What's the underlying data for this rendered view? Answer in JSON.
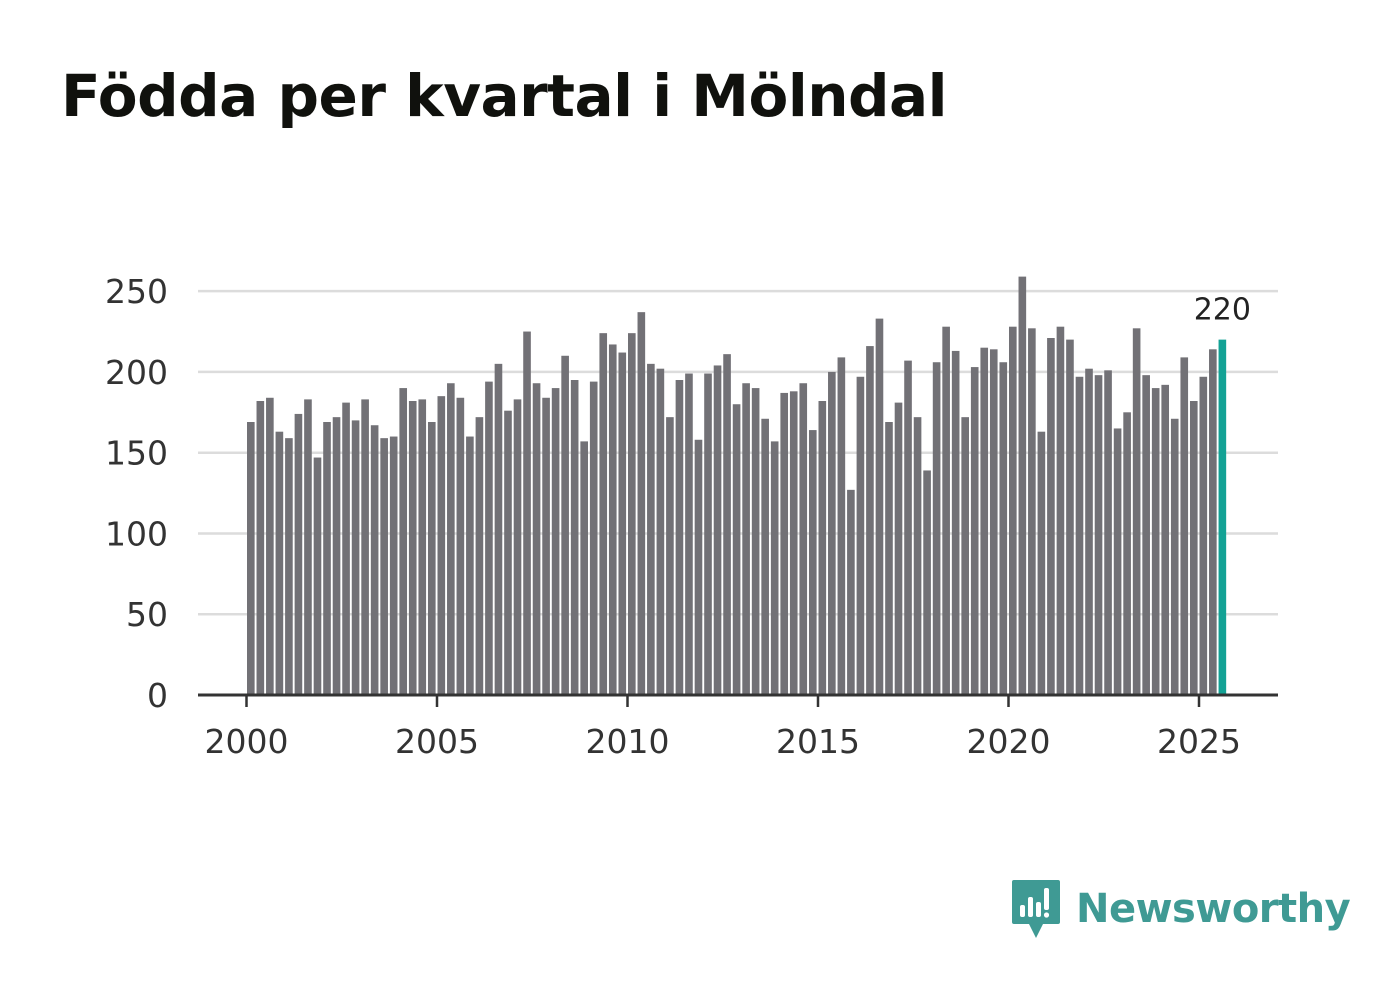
{
  "title": "Födda per kvartal i Mölndal",
  "brand": {
    "name": "Newsworthy",
    "icon": "newsworthy-logo-icon"
  },
  "colors": {
    "bar": "#727176",
    "highlight": "#13a295",
    "grid": "#dcdcdc",
    "axis": "#333333",
    "brand": "#3f9a94"
  },
  "chart_data": {
    "type": "bar",
    "title": "Födda per kvartal i Mölndal",
    "xlabel": "",
    "ylabel": "",
    "x_start_year": 2000,
    "periods_per_year": 4,
    "xlim": [
      1999.75,
      2027.0
    ],
    "ylim": [
      0,
      260
    ],
    "yticks": [
      0,
      50,
      100,
      150,
      200,
      250
    ],
    "xticks": [
      2000,
      2005,
      2010,
      2015,
      2020,
      2025
    ],
    "grid": true,
    "highlight_last": true,
    "last_value_label": "220",
    "values": [
      169,
      182,
      184,
      163,
      159,
      174,
      183,
      147,
      169,
      172,
      181,
      170,
      183,
      167,
      159,
      160,
      190,
      182,
      183,
      169,
      185,
      193,
      184,
      160,
      172,
      194,
      205,
      176,
      183,
      225,
      193,
      184,
      190,
      210,
      195,
      157,
      194,
      224,
      217,
      212,
      224,
      237,
      205,
      202,
      172,
      195,
      199,
      158,
      199,
      204,
      211,
      180,
      193,
      190,
      171,
      157,
      187,
      188,
      193,
      164,
      182,
      200,
      209,
      127,
      197,
      216,
      233,
      169,
      181,
      207,
      172,
      139,
      206,
      228,
      213,
      172,
      203,
      215,
      214,
      206,
      228,
      259,
      227,
      163,
      221,
      228,
      220,
      197,
      202,
      198,
      201,
      165,
      175,
      227,
      198,
      190,
      192,
      171,
      209,
      182,
      197,
      214,
      220
    ]
  }
}
